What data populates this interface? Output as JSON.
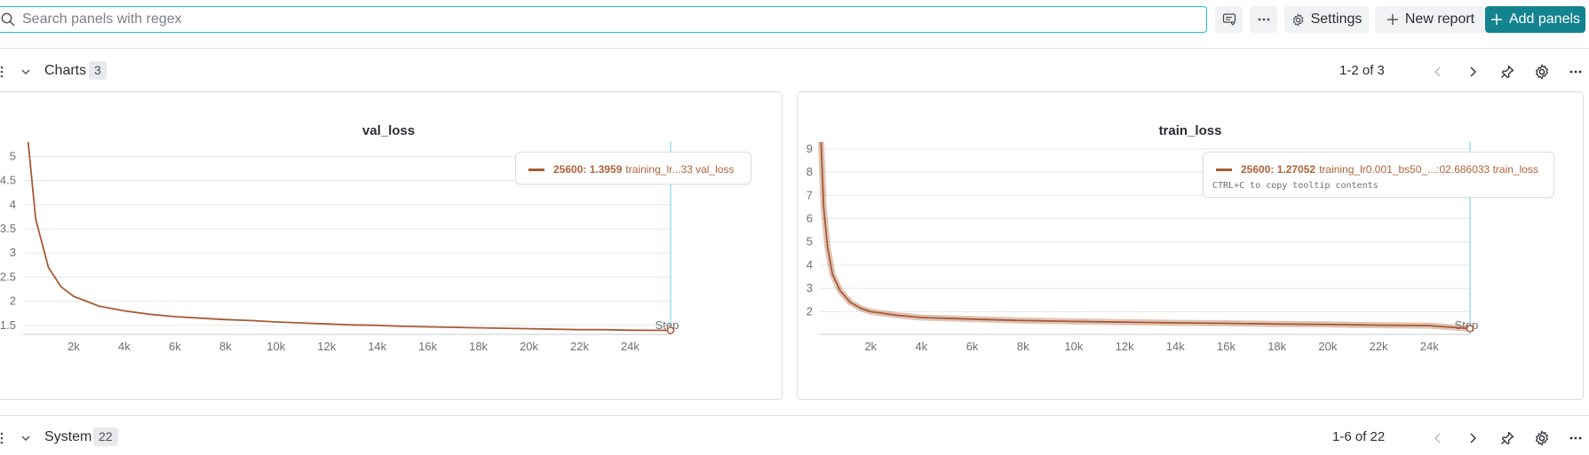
{
  "toolbar": {
    "search_placeholder": "Search panels with regex",
    "settings_label": "Settings",
    "new_report_label": "New report",
    "add_panels_label": "Add panels"
  },
  "sections": [
    {
      "title": "Charts",
      "count": "3",
      "pager": "1-2 of 3"
    },
    {
      "title": "System",
      "count": "22",
      "pager": "1-6 of 22"
    }
  ],
  "colors": {
    "accent": "#13838f",
    "search_border": "#22c0d6",
    "series": "#a85a35",
    "crosshair": "#6fd3e0"
  },
  "panels": [
    {
      "title": "val_loss",
      "tooltip": {
        "step_value": "25600: 1.3959",
        "series": "training_lr...33 val_loss"
      },
      "step_label": "Step",
      "chart_data": {
        "type": "line",
        "title": "val_loss",
        "x_ticks": [
          "2k",
          "4k",
          "6k",
          "8k",
          "10k",
          "12k",
          "14k",
          "16k",
          "18k",
          "20k",
          "22k",
          "24k"
        ],
        "y_ticks": [
          "1.5",
          "2",
          "2.5",
          "3",
          "3.5",
          "4",
          "4.5",
          "5"
        ],
        "xlim": [
          0,
          25600
        ],
        "ylim": [
          1.35,
          5.3
        ],
        "series": [
          {
            "x": [
              200,
              500,
              1000,
              1500,
              2000,
              2500,
              3000,
              4000,
              5000,
              6000,
              7000,
              8000,
              9000,
              10000,
              11000,
              12000,
              13000,
              14000,
              15000,
              16000,
              17000,
              18000,
              19000,
              20000,
              21000,
              22000,
              23000,
              24000,
              25600
            ],
            "y": [
              5.3,
              3.7,
              2.7,
              2.3,
              2.1,
              2.0,
              1.9,
              1.8,
              1.73,
              1.68,
              1.65,
              1.62,
              1.6,
              1.57,
              1.55,
              1.53,
              1.51,
              1.5,
              1.48,
              1.47,
              1.46,
              1.45,
              1.44,
              1.43,
              1.42,
              1.41,
              1.41,
              1.4,
              1.3959
            ]
          }
        ]
      }
    },
    {
      "title": "train_loss",
      "tooltip": {
        "step_value": "25600: 1.27052",
        "series": "training_lr0.001_bs50_...:02.686033 train_loss",
        "hint": "CTRL+C to copy tooltip contents"
      },
      "step_label": "Step",
      "chart_data": {
        "type": "line",
        "title": "train_loss",
        "x_ticks": [
          "2k",
          "4k",
          "6k",
          "8k",
          "10k",
          "12k",
          "14k",
          "16k",
          "18k",
          "20k",
          "22k",
          "24k"
        ],
        "y_ticks": [
          "2",
          "3",
          "4",
          "5",
          "6",
          "7",
          "8",
          "9"
        ],
        "xlim": [
          0,
          25600
        ],
        "ylim": [
          1.1,
          9.3
        ],
        "series": [
          {
            "x": [
              50,
              150,
              300,
              500,
              800,
              1200,
              1600,
              2000,
              3000,
              4000,
              6000,
              8000,
              10000,
              12000,
              14000,
              16000,
              18000,
              20000,
              22000,
              24000,
              25600
            ],
            "y": [
              9.3,
              6.5,
              4.8,
              3.6,
              2.9,
              2.4,
              2.15,
              2.0,
              1.85,
              1.75,
              1.68,
              1.62,
              1.58,
              1.55,
              1.52,
              1.5,
              1.47,
              1.45,
              1.42,
              1.4,
              1.27052
            ]
          }
        ]
      }
    }
  ]
}
